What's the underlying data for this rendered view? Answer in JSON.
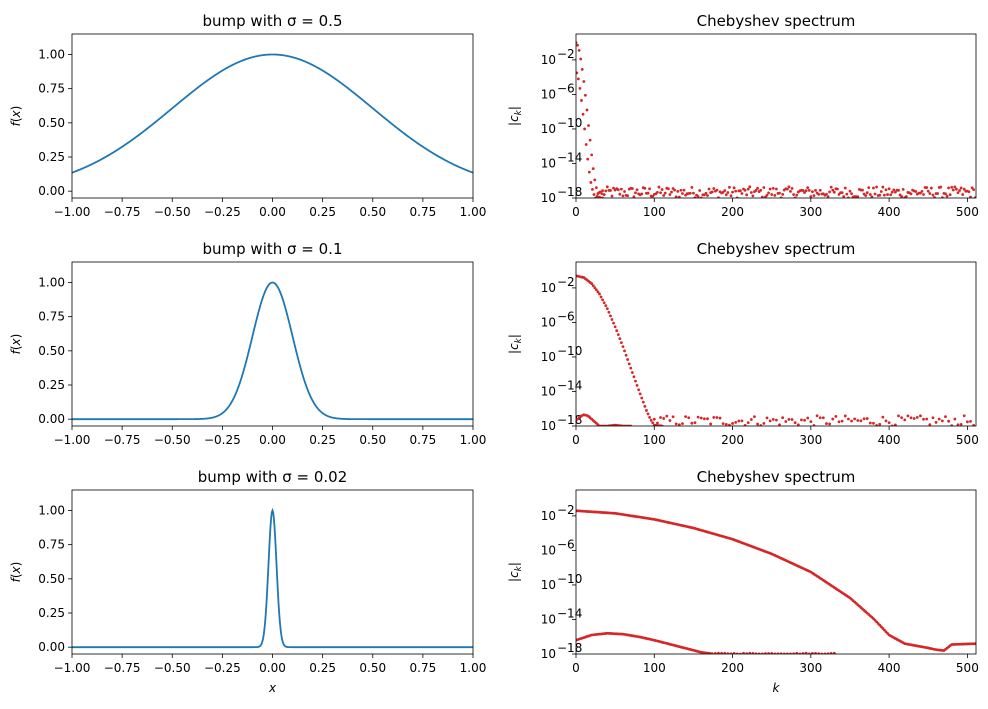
{
  "chart_data": [
    {
      "type": "line",
      "title": "bump with σ = 0.5",
      "xlabel": "",
      "ylabel": "f(x)",
      "xlim": [
        -1,
        1
      ],
      "ylim": [
        -0.05,
        1.15
      ],
      "xticks": [
        "−1.00",
        "−0.75",
        "−0.50",
        "−0.25",
        "0.00",
        "0.25",
        "0.50",
        "0.75",
        "1.00"
      ],
      "xtick_values": [
        -1,
        -0.75,
        -0.5,
        -0.25,
        0,
        0.25,
        0.5,
        0.75,
        1
      ],
      "yticks": [
        "0.00",
        "0.25",
        "0.50",
        "0.75",
        "1.00"
      ],
      "ytick_values": [
        0,
        0.25,
        0.5,
        0.75,
        1
      ],
      "function": "exp(-x^2/(2*sigma^2))",
      "sigma": 0.5,
      "color": "#1f77b4"
    },
    {
      "type": "scatter",
      "title": "Chebyshev spectrum",
      "xlabel": "",
      "ylabel": "|c_k|",
      "yscale": "log",
      "xlim": [
        0,
        511
      ],
      "ylim": [
        1e-18,
        10
      ],
      "xticks": [
        "0",
        "100",
        "200",
        "300",
        "400",
        "500"
      ],
      "xtick_values": [
        0,
        100,
        200,
        300,
        400,
        500
      ],
      "yticks_exp": [
        -2,
        -6,
        -10,
        -14,
        -18
      ],
      "series": [
        {
          "x": [
            0,
            2,
            4,
            6,
            8,
            10,
            12,
            14,
            16,
            18,
            20,
            22,
            24,
            26,
            28,
            30,
            32,
            34
          ],
          "log10": [
            0.0,
            -0.3,
            -0.9,
            -1.9,
            -3.1,
            -4.5,
            -6.1,
            -7.8,
            -9.6,
            -11.3,
            -13.0,
            -14.6,
            -15.9,
            -16.8,
            -17.5,
            -17.9,
            -18.0,
            -18.0
          ]
        },
        {
          "x": [
            1,
            3,
            5,
            7,
            9,
            11,
            13,
            15,
            17,
            19,
            21,
            23,
            25,
            27,
            29,
            31,
            33
          ],
          "log10": [
            -3.5,
            -4.2,
            -5.3,
            -6.7,
            -8.3,
            -10.0,
            -11.8,
            -13.5,
            -15.0,
            -16.2,
            -17.0,
            -17.6,
            -18.0,
            -17.8,
            -17.4,
            -17.3,
            -17.5
          ]
        }
      ],
      "noise": {
        "k_from": 34,
        "k_to": 511,
        "log10_min": -18.0,
        "log10_max": -16.7,
        "density": "dense"
      },
      "color": "#d62728"
    },
    {
      "type": "line",
      "title": "bump with σ = 0.1",
      "xlabel": "",
      "ylabel": "f(x)",
      "xlim": [
        -1,
        1
      ],
      "ylim": [
        -0.05,
        1.15
      ],
      "xticks": [
        "−1.00",
        "−0.75",
        "−0.50",
        "−0.25",
        "0.00",
        "0.25",
        "0.50",
        "0.75",
        "1.00"
      ],
      "xtick_values": [
        -1,
        -0.75,
        -0.5,
        -0.25,
        0,
        0.25,
        0.5,
        0.75,
        1
      ],
      "yticks": [
        "0.00",
        "0.25",
        "0.50",
        "0.75",
        "1.00"
      ],
      "ytick_values": [
        0,
        0.25,
        0.5,
        0.75,
        1
      ],
      "function": "exp(-x^2/(2*sigma^2))",
      "sigma": 0.1,
      "color": "#1f77b4"
    },
    {
      "type": "scatter",
      "title": "Chebyshev spectrum",
      "xlabel": "",
      "ylabel": "|c_k|",
      "yscale": "log",
      "xlim": [
        0,
        511
      ],
      "ylim": [
        1e-18,
        10
      ],
      "xticks": [
        "0",
        "100",
        "200",
        "300",
        "400",
        "500"
      ],
      "xtick_values": [
        0,
        100,
        200,
        300,
        400,
        500
      ],
      "yticks_exp": [
        -2,
        -6,
        -10,
        -14,
        -18
      ],
      "series": [
        {
          "x": [
            0,
            10,
            20,
            30,
            40,
            50,
            60,
            70,
            80,
            90,
            95,
            100,
            110
          ],
          "log10": [
            -0.6,
            -0.8,
            -1.5,
            -2.7,
            -4.4,
            -6.5,
            -8.8,
            -11.3,
            -13.8,
            -16.2,
            -17.2,
            -17.9,
            -18.0
          ]
        },
        {
          "x": [
            0,
            5,
            10,
            15,
            20,
            30,
            40,
            50,
            60,
            70
          ],
          "log10": [
            -17.4,
            -16.9,
            -16.7,
            -16.8,
            -17.2,
            -18.0,
            -18.0,
            -17.9,
            -18.0,
            -18.0
          ]
        }
      ],
      "noise": {
        "k_from": 100,
        "k_to": 511,
        "log10_min": -18.0,
        "log10_max": -16.8,
        "density": "sparse"
      },
      "color": "#d62728"
    },
    {
      "type": "line",
      "title": "bump with σ = 0.02",
      "xlabel": "x",
      "ylabel": "f(x)",
      "xlim": [
        -1,
        1
      ],
      "ylim": [
        -0.05,
        1.15
      ],
      "xticks": [
        "−1.00",
        "−0.75",
        "−0.50",
        "−0.25",
        "0.00",
        "0.25",
        "0.50",
        "0.75",
        "1.00"
      ],
      "xtick_values": [
        -1,
        -0.75,
        -0.5,
        -0.25,
        0,
        0.25,
        0.5,
        0.75,
        1
      ],
      "yticks": [
        "0.00",
        "0.25",
        "0.50",
        "0.75",
        "1.00"
      ],
      "ytick_values": [
        0,
        0.25,
        0.5,
        0.75,
        1
      ],
      "function": "exp(-x^2/(2*sigma^2))",
      "sigma": 0.02,
      "color": "#1f77b4"
    },
    {
      "type": "scatter",
      "title": "Chebyshev spectrum",
      "xlabel": "k",
      "ylabel": "|c_k|",
      "yscale": "log",
      "xlim": [
        0,
        511
      ],
      "ylim": [
        1e-18,
        10
      ],
      "xticks": [
        "0",
        "100",
        "200",
        "300",
        "400",
        "500"
      ],
      "xtick_values": [
        0,
        100,
        200,
        300,
        400,
        500
      ],
      "yticks_exp": [
        -2,
        -6,
        -10,
        -14,
        -18
      ],
      "series": [
        {
          "x": [
            0,
            50,
            100,
            150,
            200,
            250,
            300,
            350,
            380,
            400,
            420,
            450,
            460,
            470,
            480,
            511
          ],
          "log10": [
            -1.4,
            -1.7,
            -2.4,
            -3.4,
            -4.7,
            -6.4,
            -8.5,
            -11.5,
            -13.9,
            -15.8,
            -16.8,
            -17.3,
            -17.5,
            -17.6,
            -16.9,
            -16.8
          ]
        },
        {
          "x": [
            0,
            20,
            40,
            60,
            80,
            100,
            130,
            160,
            175
          ],
          "log10": [
            -16.4,
            -15.8,
            -15.6,
            -15.7,
            -16.0,
            -16.4,
            -17.1,
            -17.8,
            -18.0
          ]
        }
      ],
      "noise": {
        "k_from": 170,
        "k_to": 330,
        "log10_min": -18.0,
        "log10_max": -17.9,
        "density": "sparse"
      },
      "color": "#d62728"
    }
  ]
}
